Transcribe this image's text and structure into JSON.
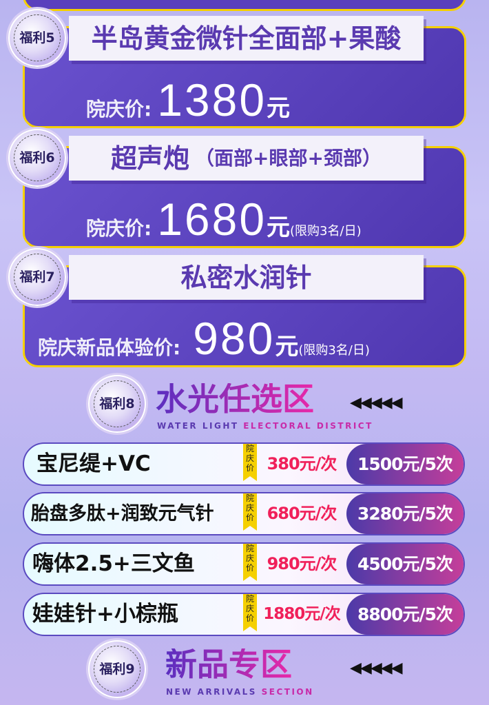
{
  "colors": {
    "card": "#5a40bd",
    "border": "#f5d000",
    "price_red": "#f0205a",
    "title_purple": "#5a3ab0",
    "accent_pink": "#e828a8"
  },
  "cards": [
    {
      "badge": "福利5",
      "title": "半岛黄金微针全面部+果酸",
      "subtitle": "",
      "label": "院庆价:",
      "price": "1380",
      "unit": "元",
      "limit": ""
    },
    {
      "badge": "福利6",
      "title": "超声炮",
      "subtitle": "（面部+眼部+颈部）",
      "label": "院庆价:",
      "price": "1680",
      "unit": "元",
      "limit": "(限购3名/日)"
    },
    {
      "badge": "福利7",
      "title": "私密水润针",
      "subtitle": "",
      "label": "院庆新品体验价:",
      "price": "980",
      "unit": "元",
      "limit": "(限购3名/日)"
    }
  ],
  "section8": {
    "badge": "福利8",
    "title": "水光任选区",
    "eng_a": "WATER LIGHT ",
    "eng_b": "ELECTORAL DISTRICT",
    "arrows": "◀◀◀◀◀",
    "tag": "院庆价",
    "rows": [
      {
        "name": "宝尼缇+VC",
        "single": "380元/次",
        "pack": "1500元/5次"
      },
      {
        "name": "胎盘多肽+润致元气针",
        "single": "680元/次",
        "pack": "3280元/5次"
      },
      {
        "name": "嗨体2.5+三文鱼",
        "single": "980元/次",
        "pack": "4500元/5次"
      },
      {
        "name": "娃娃针+小棕瓶",
        "single": "1880元/次",
        "pack": "8800元/5次"
      }
    ]
  },
  "section9": {
    "badge": "福利9",
    "title": "新品专区",
    "eng_a": "NEW ARRIVALS ",
    "eng_b": "SECTION",
    "arrows": "◀◀◀◀◀"
  }
}
